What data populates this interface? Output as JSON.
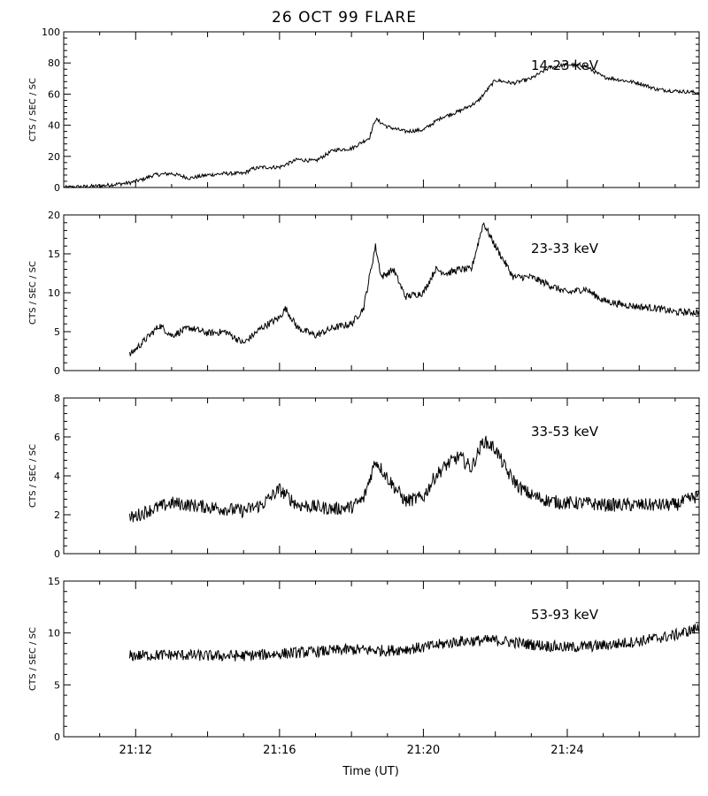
{
  "figure": {
    "title": "26 OCT 99 FLARE",
    "xlabel": "Time (UT)",
    "ylabel": "CTS / SEC / SC"
  },
  "chart_data": [
    {
      "type": "line",
      "band_label": "14-23 keV",
      "ylabel": "CTS / SEC / SC",
      "xlim": [
        "21:10:00",
        "21:27:40"
      ],
      "ylim": [
        0,
        100
      ],
      "y_ticks": [
        0,
        20,
        40,
        60,
        80,
        100
      ],
      "noise": 1.2,
      "series": [
        {
          "x": [
            "21:10:00",
            "21:11:00",
            "21:11:50",
            "21:12:10",
            "21:12:30",
            "21:13:00",
            "21:13:30",
            "21:14:00",
            "21:14:30",
            "21:15:00",
            "21:15:15",
            "21:15:30",
            "21:16:00",
            "21:16:30",
            "21:17:00",
            "21:17:30",
            "21:18:00",
            "21:18:30",
            "21:18:40",
            "21:19:00",
            "21:19:30",
            "21:20:00",
            "21:20:30",
            "21:21:00",
            "21:21:30",
            "21:22:00",
            "21:22:30",
            "21:23:00",
            "21:23:30",
            "21:24:00",
            "21:24:30",
            "21:25:00",
            "21:25:30",
            "21:26:00",
            "21:26:30",
            "21:27:00",
            "21:27:40"
          ],
          "y": [
            0,
            1,
            3,
            5,
            8,
            9,
            6,
            8,
            9,
            9,
            12,
            13,
            13,
            18,
            17,
            24,
            25,
            32,
            44,
            39,
            36,
            37,
            45,
            49,
            55,
            69,
            67,
            70,
            77,
            79,
            78,
            71,
            69,
            67,
            63,
            62,
            61
          ]
        }
      ]
    },
    {
      "type": "line",
      "band_label": "23-33 keV",
      "ylabel": "CTS / SEC / SC",
      "xlim": [
        "21:10:00",
        "21:27:40"
      ],
      "ylim": [
        0,
        20
      ],
      "y_ticks": [
        0,
        5,
        10,
        15,
        20
      ],
      "noise": 0.45,
      "series": [
        {
          "x": [
            "21:11:50",
            "21:12:10",
            "21:12:40",
            "21:13:00",
            "21:13:30",
            "21:14:00",
            "21:14:30",
            "21:15:00",
            "21:15:30",
            "21:16:00",
            "21:16:10",
            "21:16:30",
            "21:17:00",
            "21:17:30",
            "21:18:00",
            "21:18:20",
            "21:18:40",
            "21:18:50",
            "21:19:10",
            "21:19:30",
            "21:20:00",
            "21:20:20",
            "21:20:40",
            "21:21:00",
            "21:21:20",
            "21:21:40",
            "21:22:00",
            "21:22:30",
            "21:23:00",
            "21:23:30",
            "21:24:00",
            "21:24:30",
            "21:25:00",
            "21:25:30",
            "21:26:00",
            "21:26:30",
            "21:27:00",
            "21:27:40"
          ],
          "y": [
            2,
            3.5,
            5.8,
            4.5,
            5.5,
            4.8,
            5,
            3.5,
            5.5,
            6.8,
            8,
            5.5,
            4.5,
            5.5,
            6,
            8,
            16,
            12,
            13,
            9.5,
            10,
            13,
            12.5,
            13,
            13,
            19,
            16,
            12,
            12,
            11,
            10,
            10.5,
            9,
            8.5,
            8.2,
            8,
            7.5,
            7.5
          ]
        }
      ]
    },
    {
      "type": "line",
      "band_label": "33-53 keV",
      "ylabel": "CTS / SEC / SC",
      "xlim": [
        "21:10:00",
        "21:27:40"
      ],
      "ylim": [
        0,
        8
      ],
      "y_ticks": [
        0,
        2,
        4,
        6,
        8
      ],
      "noise": 0.35,
      "series": [
        {
          "x": [
            "21:11:50",
            "21:12:20",
            "21:13:00",
            "21:14:00",
            "21:15:00",
            "21:15:30",
            "21:16:00",
            "21:16:30",
            "21:17:00",
            "21:17:30",
            "21:18:00",
            "21:18:20",
            "21:18:40",
            "21:19:00",
            "21:19:30",
            "21:20:00",
            "21:20:20",
            "21:20:40",
            "21:21:00",
            "21:21:20",
            "21:21:40",
            "21:22:00",
            "21:22:20",
            "21:22:40",
            "21:23:00",
            "21:23:30",
            "21:24:00",
            "21:24:30",
            "21:25:00",
            "21:26:00",
            "21:27:00",
            "21:27:40"
          ],
          "y": [
            1.8,
            2.2,
            2.6,
            2.4,
            2.2,
            2.5,
            3.3,
            2.5,
            2.4,
            2.3,
            2.4,
            2.8,
            4.8,
            3.9,
            2.7,
            2.9,
            4,
            4.6,
            5,
            4.4,
            5.8,
            5.4,
            4.2,
            3.4,
            3,
            2.7,
            2.6,
            2.6,
            2.5,
            2.5,
            2.5,
            3
          ]
        }
      ]
    },
    {
      "type": "line",
      "band_label": "53-93 keV",
      "ylabel": "CTS / SEC / SC",
      "xlim": [
        "21:10:00",
        "21:27:40"
      ],
      "ylim": [
        0,
        15
      ],
      "y_ticks": [
        0,
        5,
        10,
        15
      ],
      "noise": 0.55,
      "series": [
        {
          "x": [
            "21:11:50",
            "21:13:00",
            "21:14:00",
            "21:15:00",
            "21:16:00",
            "21:17:00",
            "21:18:00",
            "21:19:00",
            "21:20:00",
            "21:21:00",
            "21:22:00",
            "21:23:00",
            "21:24:00",
            "21:25:00",
            "21:26:00",
            "21:27:00",
            "21:27:40"
          ],
          "y": [
            7.8,
            7.9,
            7.8,
            7.8,
            8,
            8.2,
            8.4,
            8.3,
            8.6,
            9.2,
            9.3,
            8.9,
            8.6,
            8.8,
            9.2,
            9.8,
            10.5
          ]
        }
      ]
    }
  ],
  "x_ticks": [
    "21:12",
    "21:16",
    "21:20",
    "21:24"
  ]
}
